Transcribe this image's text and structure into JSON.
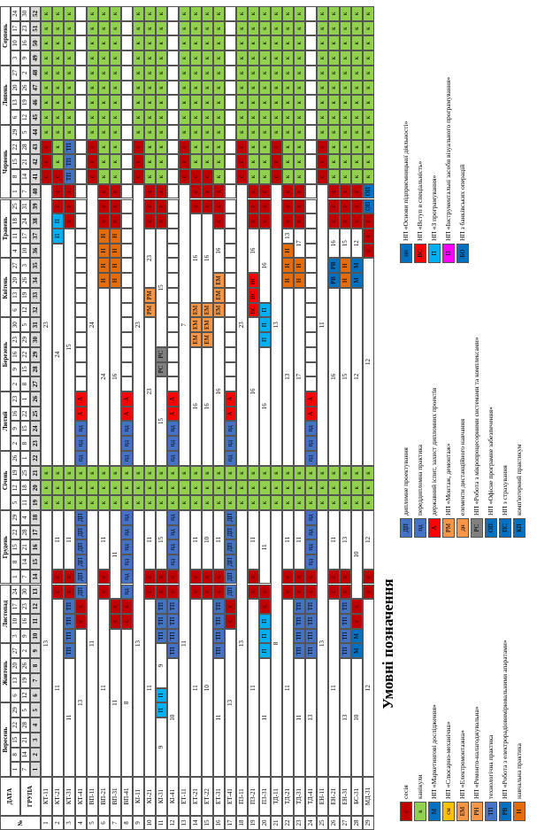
{
  "header": {
    "no_label": "№",
    "date_label": "ДАТА",
    "group_label": "ГРУПА"
  },
  "months": [
    [
      "Вересень",
      5
    ],
    [
      "Жовтень",
      4
    ],
    [
      "Листопад",
      4
    ],
    [
      "Грудень",
      5
    ],
    [
      "Січень",
      4
    ],
    [
      "Лютий",
      4
    ],
    [
      "Березень",
      5
    ],
    [
      "Квітень",
      4
    ],
    [
      "Травень",
      4
    ],
    [
      "Червень",
      5
    ],
    [
      "Липень",
      4
    ],
    [
      "Серпень",
      4
    ]
  ],
  "week_starts": [
    1,
    8,
    15,
    22,
    29,
    6,
    13,
    20,
    27,
    3,
    10,
    17,
    24,
    1,
    8,
    15,
    22,
    29,
    5,
    12,
    19,
    26,
    2,
    9,
    16,
    23,
    2,
    9,
    16,
    23,
    30,
    6,
    13,
    20,
    27,
    4,
    11,
    18,
    25,
    1,
    8,
    15,
    22,
    29,
    6,
    13,
    20,
    27,
    3,
    10,
    17,
    24
  ],
  "week_ends": [
    7,
    14,
    21,
    28,
    5,
    12,
    19,
    26,
    2,
    9,
    16,
    23,
    30,
    7,
    14,
    21,
    28,
    4,
    11,
    18,
    25,
    1,
    8,
    15,
    22,
    1,
    8,
    15,
    22,
    29,
    5,
    12,
    19,
    26,
    3,
    10,
    17,
    24,
    31,
    7,
    14,
    21,
    28,
    5,
    12,
    19,
    26,
    2,
    9,
    16,
    23,
    30
  ],
  "week_numbers": [
    1,
    2,
    3,
    4,
    5,
    6,
    7,
    8,
    9,
    10,
    11,
    12,
    13,
    14,
    15,
    16,
    17,
    18,
    19,
    20,
    21,
    22,
    23,
    24,
    25,
    26,
    27,
    28,
    29,
    30,
    31,
    32,
    33,
    34,
    35,
    36,
    37,
    38,
    39,
    40,
    41,
    42,
    43,
    44,
    45,
    46,
    47,
    48,
    49,
    50,
    51,
    52
  ],
  "rows": [
    {
      "no": 1,
      "group": "КТ-11",
      "cells": [
        [
          13,
          18
        ],
        [
          "к",
          3
        ],
        [
          23,
          19
        ],
        [
          "с",
          3
        ],
        [
          "к",
          9
        ]
      ]
    },
    {
      "no": 2,
      "group": "КТ-21",
      "cells": [
        [
          11,
          12
        ],
        [
          "с",
          2
        ],
        [
          11,
          4
        ],
        [
          "к",
          3
        ],
        [
          24,
          15
        ],
        [
          "П",
          2
        ],
        [
          "с",
          3
        ],
        [
          "к",
          11
        ]
      ]
    },
    {
      "no": 3,
      "group": "КТ-31",
      "cells": [
        [
          11,
          8
        ],
        [
          "ТП",
          4
        ],
        [
          "с",
          2
        ],
        [
          11,
          4
        ],
        [
          "к",
          3
        ],
        [
          15,
          16
        ],
        [
          "с",
          3
        ],
        [
          "ТП",
          3
        ],
        [
          "к",
          9
        ]
      ]
    },
    {
      "no": 4,
      "group": "КТ-41",
      "cells": [
        [
          13,
          10
        ],
        [
          "с",
          2
        ],
        [
          "ДП",
          6
        ],
        [
          "к",
          3
        ],
        [
          "пд",
          3
        ],
        [
          "А",
          2
        ]
      ]
    },
    {
      "no": 5,
      "group": "ВП-11",
      "cells": [
        [
          11,
          18
        ],
        [
          "к",
          3
        ],
        [
          24,
          19
        ],
        [
          "с",
          3
        ],
        [
          "к",
          9
        ]
      ]
    },
    {
      "no": 6,
      "group": "ВП-21",
      "cells": [
        [
          11,
          12
        ],
        [
          "с",
          2
        ],
        [
          11,
          4
        ],
        [
          "к",
          3
        ],
        [
          24,
          12
        ],
        [
          "Н",
          4
        ],
        [
          "с",
          3
        ],
        [
          "к",
          12
        ]
      ]
    },
    {
      "no": 7,
      "group": "ВП-31",
      "cells": [
        [
          11,
          10
        ],
        [
          "с",
          2
        ],
        [
          11,
          6
        ],
        [
          "к",
          3
        ],
        [
          16,
          12
        ],
        [
          "Н",
          4
        ],
        [
          "с",
          3
        ],
        [
          "к",
          12
        ]
      ]
    },
    {
      "no": 8,
      "group": "ВП-41",
      "cells": [
        [
          8,
          10
        ],
        [
          "с",
          2
        ],
        [
          "пд",
          6
        ],
        [
          "к",
          3
        ],
        [
          "пд",
          3
        ],
        [
          "А",
          2
        ]
      ]
    },
    {
      "no": 9,
      "group": "КІ-11",
      "cells": [
        [
          13,
          18
        ],
        [
          "к",
          3
        ],
        [
          23,
          19
        ],
        [
          "с",
          3
        ],
        [
          "к",
          9
        ]
      ]
    },
    {
      "no": 10,
      "group": "КІ-21",
      "cells": [
        [
          11,
          12
        ],
        [
          "с",
          2
        ],
        [
          11,
          4
        ],
        [
          "к",
          3
        ],
        [
          23,
          10
        ],
        [
          "РМ",
          2
        ],
        [
          23,
          4
        ],
        [
          "с",
          3
        ],
        [
          "к",
          12
        ]
      ]
    },
    {
      "no": 11,
      "group": "КІ-31",
      "cells": [
        [
          9,
          4
        ],
        [
          "П",
          2
        ],
        [
          9,
          3
        ],
        [
          "ТП",
          3
        ],
        [
          "с",
          2
        ],
        [
          15,
          4
        ],
        [
          "к",
          3
        ],
        [
          15,
          6
        ],
        [
          "РС",
          2
        ],
        [
          15,
          8
        ],
        [
          "с",
          3
        ],
        [
          "к",
          12
        ]
      ]
    },
    {
      "no": 12,
      "group": "КІ-41",
      "cells": [
        [
          10,
          8
        ],
        [
          "ТП",
          4
        ],
        [
          "с",
          2
        ],
        [
          "пд",
          4
        ],
        [
          "к",
          3
        ],
        [
          "пд",
          3
        ],
        [
          "А",
          2
        ]
      ]
    },
    {
      "no": 13,
      "group": "ЕТ-11",
      "cells": [
        [
          11,
          18
        ],
        [
          "к",
          3
        ],
        [
          7,
          19
        ],
        [
          "с",
          3
        ],
        [
          "к",
          9
        ]
      ]
    },
    {
      "no": 14,
      "group": "ЕТ-21",
      "cells": [
        [
          11,
          12
        ],
        [
          "с",
          2
        ],
        [
          11,
          4
        ],
        [
          "к",
          3
        ],
        [
          16,
          8
        ],
        [
          "ЕМ",
          3
        ],
        [
          16,
          6
        ],
        [
          "с",
          3
        ],
        [
          "к",
          11
        ]
      ]
    },
    {
      "no": 15,
      "group": "ЕТ-22",
      "cells": [
        [
          10,
          12
        ],
        [
          "с",
          2
        ],
        [
          10,
          4
        ],
        [
          "к",
          3
        ],
        [
          16,
          8
        ],
        [
          "ЕМ",
          3
        ],
        [
          16,
          6
        ],
        [
          "с",
          3
        ],
        [
          "к",
          11
        ]
      ]
    },
    {
      "no": 16,
      "group": "ЕТ-31",
      "cells": [
        [
          11,
          8
        ],
        [
          "ТП",
          4
        ],
        [
          "с",
          2
        ],
        [
          11,
          4
        ],
        [
          "к",
          3
        ],
        [
          16,
          10
        ],
        [
          "ЕМ",
          3
        ],
        [
          16,
          3
        ],
        [
          "с",
          3
        ],
        [
          "к",
          12
        ]
      ]
    },
    {
      "no": 17,
      "group": "ЕТ-41",
      "cells": [
        [
          13,
          10
        ],
        [
          "с",
          2
        ],
        [
          "ДП",
          6
        ],
        [
          "к",
          3
        ],
        [
          "пд",
          3
        ],
        [
          "А",
          2
        ]
      ]
    },
    {
      "no": 18,
      "group": "ПЗ-11",
      "cells": [
        [
          13,
          18
        ],
        [
          "к",
          3
        ],
        [
          23,
          19
        ],
        [
          "с",
          3
        ],
        [
          "к",
          9
        ]
      ]
    },
    {
      "no": 19,
      "group": "ПЗ-21",
      "cells": [
        [
          11,
          12
        ],
        [
          "с",
          2
        ],
        [
          11,
          4
        ],
        [
          "к",
          3
        ],
        [
          16,
          10
        ],
        [
          "ВС",
          3
        ],
        [
          16,
          3
        ],
        [
          "с",
          3
        ],
        [
          "к",
          12
        ]
      ]
    },
    {
      "no": 20,
      "group": "ПЗ-31",
      "cells": [
        [
          11,
          8
        ],
        [
          "П",
          3
        ],
        [
          "с",
          2
        ],
        [
          11,
          5
        ],
        [
          "к",
          3
        ],
        [
          16,
          8
        ],
        [
          "П",
          3
        ],
        [
          16,
          5
        ],
        [
          "с",
          3
        ],
        [
          "к",
          12
        ]
      ]
    },
    {
      "no": 21,
      "group": "ТД-11",
      "cells": [
        [
          8,
          18
        ],
        [
          "к",
          3
        ],
        [
          13,
          19
        ],
        [
          "с",
          3
        ],
        [
          "к",
          9
        ]
      ]
    },
    {
      "no": 22,
      "group": "ТД-21",
      "cells": [
        [
          11,
          12
        ],
        [
          "с",
          2
        ],
        [
          11,
          4
        ],
        [
          "к",
          3
        ],
        [
          13,
          12
        ],
        [
          "Н",
          3
        ],
        [
          13,
          1
        ],
        [
          "с",
          3
        ],
        [
          "к",
          12
        ]
      ]
    },
    {
      "no": 23,
      "group": "ТД-31",
      "cells": [
        [
          11,
          8
        ],
        [
          "ТП",
          4
        ],
        [
          "с",
          2
        ],
        [
          11,
          4
        ],
        [
          "к",
          3
        ],
        [
          17,
          12
        ],
        [
          "Н",
          2
        ],
        [
          17,
          2
        ],
        [
          "с",
          3
        ],
        [
          "к",
          12
        ]
      ]
    },
    {
      "no": 24,
      "group": "ТД-41",
      "cells": [
        [
          13,
          8
        ],
        [
          "ТП",
          4
        ],
        [
          "с",
          2
        ],
        [
          "пд",
          4
        ],
        [
          "к",
          3
        ],
        [
          "пд",
          3
        ],
        [
          "А",
          2
        ]
      ]
    },
    {
      "no": 25,
      "group": "ЕН-11",
      "cells": [
        [
          13,
          18
        ],
        [
          "к",
          3
        ],
        [
          11,
          19
        ],
        [
          "с",
          3
        ],
        [
          "к",
          9
        ]
      ]
    },
    {
      "no": 26,
      "group": "ЕН-21",
      "cells": [
        [
          11,
          12
        ],
        [
          "с",
          2
        ],
        [
          11,
          4
        ],
        [
          "к",
          3
        ],
        [
          16,
          12
        ],
        [
          "РВ",
          2
        ],
        [
          16,
          2
        ],
        [
          "с",
          3
        ],
        [
          "к",
          12
        ]
      ]
    },
    {
      "no": 27,
      "group": "ЕН-31",
      "cells": [
        [
          13,
          8
        ],
        [
          "ТП",
          4
        ],
        [
          "с",
          2
        ],
        [
          13,
          4
        ],
        [
          "к",
          3
        ],
        [
          15,
          12
        ],
        [
          "Н",
          2
        ],
        [
          15,
          2
        ],
        [
          "с",
          3
        ],
        [
          "к",
          12
        ]
      ]
    },
    {
      "no": 28,
      "group": "БС-31",
      "cells": [
        [
          10,
          8
        ],
        [
          "М",
          2
        ],
        [
          "с",
          2
        ],
        [
          10,
          6
        ],
        [
          "к",
          3
        ],
        [
          12,
          12
        ],
        [
          "М",
          2
        ],
        [
          12,
          2
        ],
        [
          "с",
          3
        ],
        [
          "к",
          12
        ]
      ]
    },
    {
      "no": 29,
      "group": "МД-31",
      "cells": [
        [
          12,
          12
        ],
        [
          "с",
          2
        ],
        [
          12,
          4
        ],
        [
          "к",
          3
        ],
        [
          12,
          14
        ],
        [
          "с",
          3
        ],
        [
          "ОП",
          2
        ],
        [
          "к",
          12
        ]
      ]
    }
  ],
  "legend": {
    "title": "Умовні позначення",
    "columns": [
      [
        {
          "code": "с",
          "color": "#c00000",
          "text": "сесія"
        },
        {
          "code": "к",
          "color": "#92d050",
          "text": "канікули"
        },
        {
          "code": "М",
          "color": "#0070c0",
          "text": "НП «Маркетингові дослідження»"
        },
        {
          "code": "см",
          "color": "#ffc000",
          "text": "НП «Слюсарно-механічна»"
        },
        {
          "code": "ЕМ",
          "color": "#f79646",
          "text": "НП «Електромонтажна»"
        },
        {
          "code": "РН",
          "color": "#f79646",
          "text": "НП «Ремонто-налагоджувальна»"
        },
        {
          "code": "ТП",
          "color": "#4472c4",
          "text": "технологічна практика"
        },
        {
          "code": "РВ",
          "color": "#0070c0",
          "text": "НП «Робота з електрорадіовимірювальними апаратами»"
        },
        {
          "code": "Н",
          "color": "#e46c0a",
          "text": "навчальна практика"
        }
      ],
      [
        {
          "code": "ДП",
          "color": "#4472c4",
          "text": "дипломне проектування"
        },
        {
          "code": "пд",
          "color": "#4472c4",
          "text": "переддипломна практика"
        },
        {
          "code": "А",
          "color": "#ff0000",
          "text": "державний іспит, захист дипломних проектів"
        },
        {
          "code": "РМ",
          "color": "#f79646",
          "text": "НП «Монтаж, демонтаж»"
        },
        {
          "code": "дн",
          "color": "#f79646",
          "text": "елементи дистанційного навчання"
        },
        {
          "code": "РС",
          "color": "#808080",
          "text": "НП «Робота з мікропроцесорними системами та комплексами»"
        },
        {
          "code": "ОП",
          "color": "#0070c0",
          "text": "НП «Офісне програмне забезпечення»"
        },
        {
          "code": "ПС",
          "color": "#0070c0",
          "text": "НП з страхування"
        },
        {
          "code": "КП",
          "color": "#0070c0",
          "text": "комп'ютерний практикум"
        }
      ],
      [
        {
          "code": "пп",
          "color": "#0070c0",
          "text": "НП «Основи підприємницької діяльності»"
        },
        {
          "code": "ВС",
          "color": "#ff0000",
          "text": "НП «Вступ в спеціальність»"
        },
        {
          "code": "П",
          "color": "#00b0f0",
          "text": "НП «З програмування»"
        },
        {
          "code": "ІЗ",
          "color": "#ff00ff",
          "text": "НП «Інструментальні засоби візуального програмування»"
        },
        {
          "code": "БО",
          "color": "#0070c0",
          "text": "НП з банківських операцій"
        }
      ]
    ]
  }
}
